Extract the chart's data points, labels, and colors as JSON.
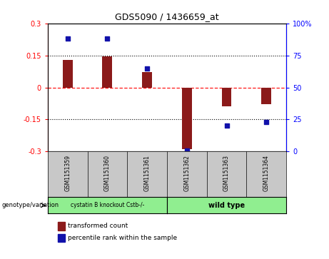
{
  "title": "GDS5090 / 1436659_at",
  "samples": [
    "GSM1151359",
    "GSM1151360",
    "GSM1151361",
    "GSM1151362",
    "GSM1151363",
    "GSM1151364"
  ],
  "bar_values": [
    0.13,
    0.145,
    0.072,
    -0.29,
    -0.09,
    -0.08
  ],
  "point_values": [
    88,
    88,
    65,
    1,
    20,
    23
  ],
  "bar_color": "#8B1A1A",
  "point_color": "#1111AA",
  "ylim_left": [
    -0.3,
    0.3
  ],
  "ylim_right": [
    0,
    100
  ],
  "yticks_left": [
    -0.3,
    -0.15,
    0.0,
    0.15,
    0.3
  ],
  "yticks_right": [
    0,
    25,
    50,
    75,
    100
  ],
  "ytick_labels_left": [
    "-0.3",
    "-0.15",
    "0",
    "0.15",
    "0.3"
  ],
  "ytick_labels_right": [
    "0",
    "25",
    "50",
    "75",
    "100%"
  ],
  "hlines_dotted": [
    -0.15,
    0.15
  ],
  "hline_dashed_red": 0.0,
  "groups": [
    {
      "label": "cystatin B knockout Cstb-/-",
      "n": 3,
      "color": "#90EE90",
      "bold": false
    },
    {
      "label": "wild type",
      "n": 3,
      "color": "#90EE90",
      "bold": true
    }
  ],
  "group_row_label": "genotype/variation",
  "legend_bar_label": "transformed count",
  "legend_point_label": "percentile rank within the sample",
  "bar_width": 0.25,
  "sample_box_color": "#C8C8C8",
  "background_color": "#ffffff"
}
